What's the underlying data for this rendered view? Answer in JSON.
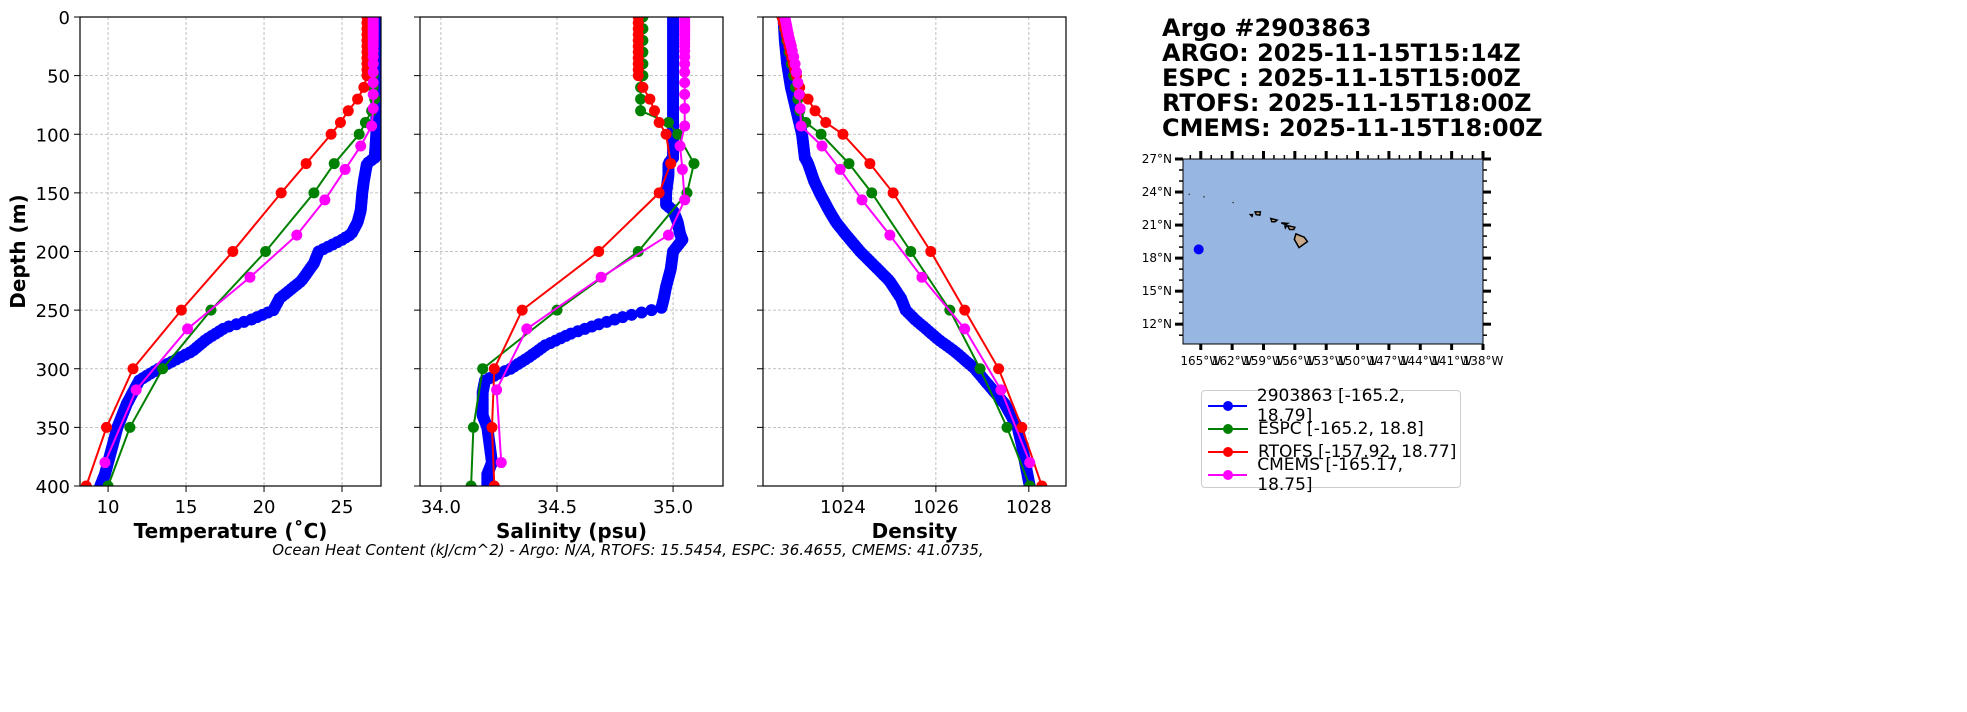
{
  "title": {
    "lines": [
      "Argo #2903863",
      "ARGO: 2025-11-15T15:14Z",
      "ESPC : 2025-11-15T15:00Z",
      "RTOFS: 2025-11-15T18:00Z",
      "CMEMS: 2025-11-15T18:00Z"
    ]
  },
  "caption": "Ocean Heat Content (kJ/cm^2) - Argo: N/A,  RTOFS: 15.5454,  ESPC: 36.4655,  CMEMS: 41.0735,",
  "legend": [
    {
      "label": "2903863 [-165.2, 18.79]",
      "color": "#0000ff"
    },
    {
      "label": "ESPC [-165.2, 18.8]",
      "color": "#008000"
    },
    {
      "label": "RTOFS [-157.92, 18.77]",
      "color": "#ff0000"
    },
    {
      "label": "CMEMS [-165.17, 18.75]",
      "color": "#ff00ff"
    }
  ],
  "chart_data": [
    {
      "type": "line",
      "xlabel": "Temperature (˚C)",
      "ylabel": "Depth (m)",
      "xlim": [
        8.2,
        27.5
      ],
      "ylim": [
        400,
        0
      ],
      "xticks": [
        10,
        15,
        20,
        25
      ],
      "xtick_labels": [
        "10",
        "15",
        "20",
        "25"
      ],
      "yticks": [
        0,
        50,
        100,
        150,
        200,
        250,
        300,
        350,
        400
      ],
      "ytick_labels": [
        "0",
        "50",
        "100",
        "150",
        "200",
        "250",
        "300",
        "350",
        "400"
      ],
      "grid": true,
      "series": [
        {
          "name": "2903863",
          "color": "#0000ff",
          "depth": [
            0,
            20,
            40,
            60,
            80,
            100,
            120,
            125,
            140,
            150,
            165,
            175,
            185,
            190,
            200,
            210,
            225,
            240,
            250,
            258,
            265,
            275,
            285,
            298,
            305,
            310,
            320,
            330,
            340,
            350,
            365,
            380,
            390,
            400
          ],
          "values": [
            27.2,
            27.2,
            27.2,
            27.2,
            27.2,
            27.2,
            27.1,
            26.6,
            26.4,
            26.3,
            26.2,
            26.0,
            25.6,
            25.0,
            23.5,
            23.2,
            22.4,
            21.0,
            20.6,
            19.2,
            17.5,
            16.3,
            15.4,
            13.5,
            12.6,
            12.0,
            11.6,
            11.2,
            10.9,
            10.6,
            10.3,
            10.0,
            9.8,
            9.5
          ]
        },
        {
          "name": "ESPC",
          "color": "#008000",
          "depth": [
            0,
            10,
            20,
            30,
            40,
            50,
            60,
            70,
            80,
            90,
            100,
            125,
            150,
            200,
            250,
            300,
            350,
            400
          ],
          "values": [
            27.0,
            27.0,
            27.0,
            27.0,
            27.0,
            27.0,
            27.0,
            27.1,
            26.9,
            26.5,
            26.1,
            24.5,
            23.2,
            20.1,
            16.6,
            13.5,
            11.4,
            10.0
          ]
        },
        {
          "name": "RTOFS",
          "color": "#ff0000",
          "depth": [
            0,
            5,
            10,
            15,
            20,
            25,
            30,
            35,
            40,
            45,
            50,
            60,
            70,
            80,
            90,
            100,
            125,
            150,
            200,
            250,
            300,
            350,
            400
          ],
          "values": [
            26.6,
            26.6,
            26.6,
            26.6,
            26.6,
            26.6,
            26.6,
            26.6,
            26.6,
            26.6,
            26.6,
            26.4,
            26.0,
            25.4,
            24.9,
            24.3,
            22.7,
            21.1,
            18.0,
            14.7,
            11.6,
            9.9,
            8.6
          ]
        },
        {
          "name": "CMEMS",
          "color": "#ff00ff",
          "depth": [
            0,
            2,
            4,
            6,
            8,
            10,
            12,
            14,
            16,
            19,
            22,
            25,
            29,
            34,
            40,
            47,
            56,
            66,
            78,
            93,
            110,
            130,
            156,
            186,
            222,
            266,
            318,
            380
          ],
          "values": [
            27.0,
            27.0,
            27.0,
            27.0,
            27.0,
            27.0,
            27.0,
            27.0,
            27.0,
            27.0,
            27.0,
            27.0,
            27.0,
            27.0,
            27.0,
            27.0,
            27.0,
            27.0,
            27.0,
            26.9,
            26.2,
            25.2,
            23.9,
            22.1,
            19.1,
            15.1,
            11.8,
            9.8
          ]
        }
      ]
    },
    {
      "type": "line",
      "xlabel": "Salinity (psu)",
      "xlim": [
        33.91,
        35.215
      ],
      "ylim": [
        400,
        0
      ],
      "xticks": [
        34.0,
        34.5,
        35.0
      ],
      "xtick_labels": [
        "34.0",
        "34.5",
        "35.0"
      ],
      "grid": true,
      "series": [
        {
          "name": "2903863",
          "color": "#0000ff",
          "depth": [
            0,
            20,
            40,
            60,
            80,
            100,
            120,
            125,
            135,
            150,
            160,
            165,
            175,
            185,
            190,
            200,
            215,
            230,
            240,
            248,
            255,
            262,
            270,
            280,
            290,
            300,
            305,
            310,
            320,
            330,
            340,
            350,
            365,
            380,
            390,
            400
          ],
          "values": [
            35.0,
            35.0,
            35.0,
            35.0,
            35.0,
            35.0,
            35.0,
            34.98,
            34.98,
            34.97,
            34.97,
            35.0,
            35.02,
            35.03,
            35.04,
            35.0,
            34.99,
            34.97,
            34.96,
            34.95,
            34.8,
            34.68,
            34.56,
            34.45,
            34.38,
            34.3,
            34.24,
            34.19,
            34.18,
            34.18,
            34.18,
            34.2,
            34.21,
            34.22,
            34.2,
            34.2
          ]
        },
        {
          "name": "ESPC",
          "color": "#008000",
          "depth": [
            0,
            10,
            20,
            30,
            40,
            50,
            60,
            70,
            80,
            90,
            100,
            125,
            150,
            200,
            250,
            300,
            350,
            400
          ],
          "values": [
            34.87,
            34.87,
            34.87,
            34.87,
            34.87,
            34.87,
            34.86,
            34.86,
            34.86,
            34.98,
            35.02,
            35.09,
            35.06,
            34.85,
            34.5,
            34.18,
            34.14,
            34.13
          ]
        },
        {
          "name": "RTOFS",
          "color": "#ff0000",
          "depth": [
            0,
            5,
            10,
            15,
            20,
            25,
            30,
            35,
            40,
            45,
            50,
            60,
            70,
            80,
            90,
            100,
            125,
            150,
            200,
            250,
            300,
            350,
            400
          ],
          "values": [
            34.85,
            34.85,
            34.85,
            34.85,
            34.85,
            34.85,
            34.85,
            34.85,
            34.85,
            34.85,
            34.85,
            34.87,
            34.9,
            34.92,
            34.94,
            34.97,
            34.99,
            34.94,
            34.68,
            34.35,
            34.23,
            34.22,
            34.23
          ]
        },
        {
          "name": "CMEMS",
          "color": "#ff00ff",
          "depth": [
            0,
            2,
            4,
            6,
            8,
            10,
            12,
            14,
            16,
            19,
            22,
            25,
            29,
            34,
            40,
            47,
            56,
            66,
            78,
            93,
            110,
            130,
            156,
            186,
            222,
            266,
            318,
            380
          ],
          "values": [
            35.05,
            35.05,
            35.05,
            35.05,
            35.05,
            35.05,
            35.05,
            35.05,
            35.05,
            35.05,
            35.05,
            35.05,
            35.05,
            35.05,
            35.05,
            35.05,
            35.05,
            35.05,
            35.05,
            35.05,
            35.03,
            35.04,
            35.05,
            34.98,
            34.69,
            34.37,
            34.24,
            34.26
          ]
        }
      ]
    },
    {
      "type": "line",
      "xlabel": "Density",
      "xlim": [
        1022.28,
        1028.8
      ],
      "ylim": [
        400,
        0
      ],
      "xticks": [
        1024,
        1026,
        1028
      ],
      "xtick_labels": [
        "1024",
        "1026",
        "1028"
      ],
      "grid": true,
      "series": [
        {
          "name": "2903863",
          "color": "#0000ff",
          "depth": [
            0,
            20,
            40,
            60,
            80,
            100,
            120,
            125,
            140,
            150,
            165,
            175,
            185,
            200,
            215,
            225,
            240,
            250,
            258,
            265,
            275,
            285,
            300,
            310,
            330,
            350,
            365,
            380,
            400
          ],
          "values": [
            1022.72,
            1022.75,
            1022.8,
            1022.88,
            1023.0,
            1023.12,
            1023.18,
            1023.25,
            1023.38,
            1023.5,
            1023.7,
            1023.85,
            1024.05,
            1024.37,
            1024.75,
            1025.0,
            1025.25,
            1025.35,
            1025.55,
            1025.76,
            1026.05,
            1026.4,
            1026.84,
            1027.05,
            1027.48,
            1027.76,
            1027.85,
            1027.92,
            1028.02
          ]
        },
        {
          "name": "ESPC",
          "color": "#008000",
          "depth": [
            0,
            10,
            20,
            30,
            40,
            50,
            60,
            70,
            80,
            90,
            100,
            125,
            150,
            200,
            250,
            300,
            350,
            400
          ],
          "values": [
            1022.69,
            1022.74,
            1022.79,
            1022.84,
            1022.89,
            1022.94,
            1022.98,
            1023.03,
            1023.07,
            1023.2,
            1023.53,
            1024.13,
            1024.62,
            1025.46,
            1026.3,
            1026.95,
            1027.53,
            1028.02
          ]
        },
        {
          "name": "RTOFS",
          "color": "#ff0000",
          "depth": [
            0,
            5,
            10,
            15,
            20,
            25,
            30,
            35,
            40,
            45,
            50,
            60,
            70,
            80,
            90,
            100,
            125,
            150,
            200,
            250,
            300,
            350,
            400
          ],
          "values": [
            1022.69,
            1022.72,
            1022.75,
            1022.78,
            1022.81,
            1022.84,
            1022.87,
            1022.9,
            1022.93,
            1022.96,
            1023.0,
            1023.07,
            1023.25,
            1023.4,
            1023.63,
            1024.0,
            1024.58,
            1025.08,
            1025.89,
            1026.62,
            1027.35,
            1027.85,
            1028.28
          ]
        },
        {
          "name": "CMEMS",
          "color": "#ff00ff",
          "depth": [
            0,
            2,
            4,
            6,
            8,
            10,
            12,
            14,
            16,
            19,
            22,
            25,
            29,
            34,
            40,
            47,
            56,
            66,
            78,
            93,
            110,
            130,
            156,
            186,
            222,
            266,
            318,
            380
          ],
          "values": [
            1022.75,
            1022.76,
            1022.77,
            1022.78,
            1022.79,
            1022.8,
            1022.81,
            1022.82,
            1022.83,
            1022.85,
            1022.87,
            1022.89,
            1022.91,
            1022.94,
            1022.97,
            1023.0,
            1023.03,
            1023.06,
            1023.08,
            1023.1,
            1023.55,
            1023.94,
            1024.41,
            1025.01,
            1025.7,
            1026.62,
            1027.4,
            1028.02
          ]
        }
      ]
    },
    {
      "type": "scatter",
      "subtype": "map",
      "lon_range": [
        -166.7,
        -138
      ],
      "lat_range": [
        10.2,
        27
      ],
      "lat_ticks": [
        27,
        24,
        21,
        18,
        15,
        12
      ],
      "lat_labels": [
        "27°N",
        "24°N",
        "21°N",
        "18°N",
        "15°N",
        "12°N"
      ],
      "lon_ticks": [
        -165,
        -162,
        -159,
        -156,
        -153,
        -150,
        -147,
        -144,
        -141,
        -138
      ],
      "lon_labels": [
        "165°W",
        "162°W",
        "159°W",
        "156°W",
        "153°W",
        "150°W",
        "147°W",
        "144°W",
        "141°W",
        "138°W"
      ],
      "ocean_color": "#97b6e1",
      "land_color": "#c9ab8a",
      "points": [
        {
          "name": "2903863",
          "lon": -165.2,
          "lat": 18.79,
          "color": "#0000ff"
        }
      ]
    }
  ]
}
